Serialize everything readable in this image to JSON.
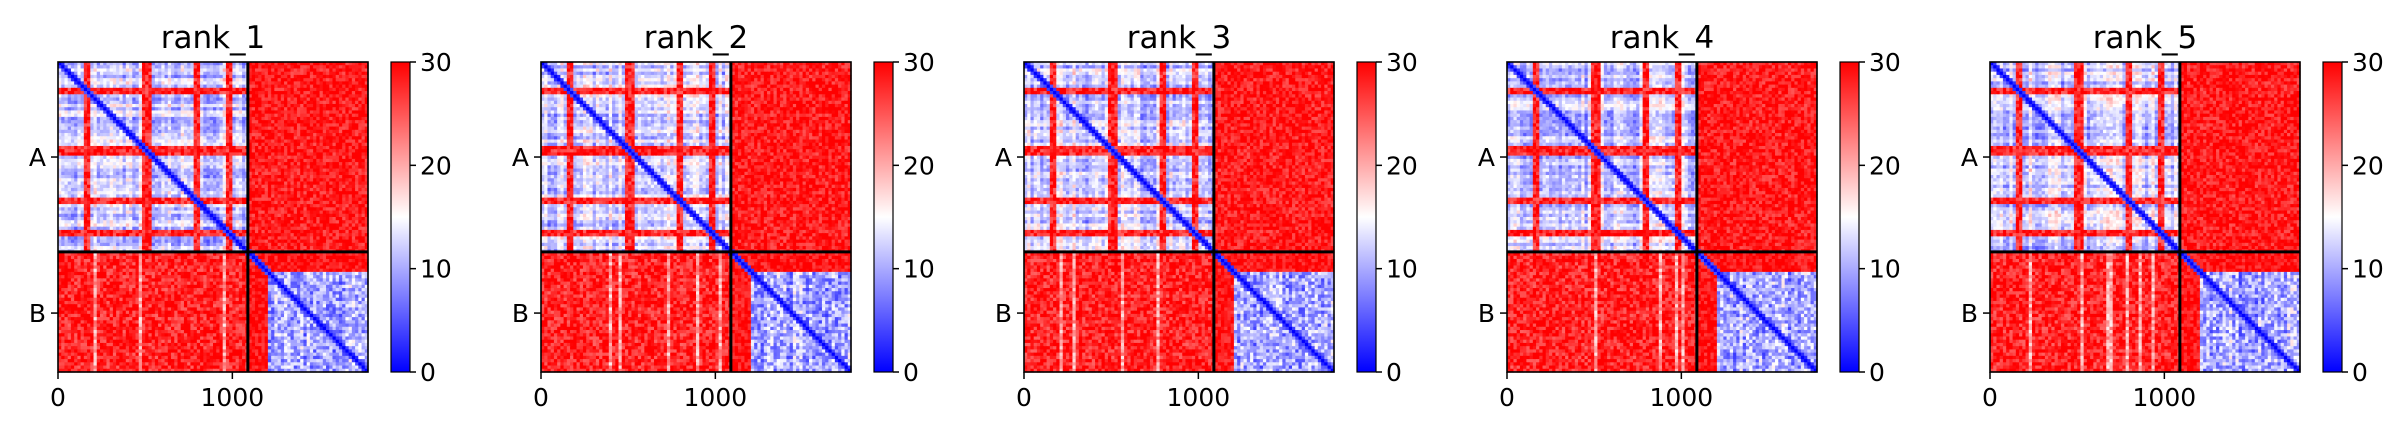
{
  "chart_data": [
    {
      "type": "heatmap",
      "title": "rank_1",
      "x_ticks": [
        {
          "value": 0,
          "label": "0"
        },
        {
          "value": 1000,
          "label": "1000"
        }
      ],
      "xlim": [
        0,
        1778
      ],
      "y_ticks": [
        {
          "value": 545,
          "label": "A"
        },
        {
          "value": 1440,
          "label": "B"
        }
      ],
      "segment_boundary": 1089,
      "colorbar": {
        "min": 0,
        "max": 30,
        "ticks": [
          0,
          10,
          20,
          30
        ],
        "colormap": "bwr"
      },
      "variant": 1
    },
    {
      "type": "heatmap",
      "title": "rank_2",
      "x_ticks": [
        {
          "value": 0,
          "label": "0"
        },
        {
          "value": 1000,
          "label": "1000"
        }
      ],
      "xlim": [
        0,
        1778
      ],
      "y_ticks": [
        {
          "value": 545,
          "label": "A"
        },
        {
          "value": 1440,
          "label": "B"
        }
      ],
      "segment_boundary": 1089,
      "colorbar": {
        "min": 0,
        "max": 30,
        "ticks": [
          0,
          10,
          20,
          30
        ],
        "colormap": "bwr"
      },
      "variant": 2
    },
    {
      "type": "heatmap",
      "title": "rank_3",
      "x_ticks": [
        {
          "value": 0,
          "label": "0"
        },
        {
          "value": 1000,
          "label": "1000"
        }
      ],
      "xlim": [
        0,
        1778
      ],
      "y_ticks": [
        {
          "value": 545,
          "label": "A"
        },
        {
          "value": 1440,
          "label": "B"
        }
      ],
      "segment_boundary": 1089,
      "colorbar": {
        "min": 0,
        "max": 30,
        "ticks": [
          0,
          10,
          20,
          30
        ],
        "colormap": "bwr"
      },
      "variant": 3
    },
    {
      "type": "heatmap",
      "title": "rank_4",
      "x_ticks": [
        {
          "value": 0,
          "label": "0"
        },
        {
          "value": 1000,
          "label": "1000"
        }
      ],
      "xlim": [
        0,
        1778
      ],
      "y_ticks": [
        {
          "value": 545,
          "label": "A"
        },
        {
          "value": 1440,
          "label": "B"
        }
      ],
      "segment_boundary": 1089,
      "colorbar": {
        "min": 0,
        "max": 30,
        "ticks": [
          0,
          10,
          20,
          30
        ],
        "colormap": "bwr"
      },
      "variant": 4
    },
    {
      "type": "heatmap",
      "title": "rank_5",
      "x_ticks": [
        {
          "value": 0,
          "label": "0"
        },
        {
          "value": 1000,
          "label": "1000"
        }
      ],
      "xlim": [
        0,
        1778
      ],
      "y_ticks": [
        {
          "value": 545,
          "label": "A"
        },
        {
          "value": 1440,
          "label": "B"
        }
      ],
      "segment_boundary": 1089,
      "colorbar": {
        "min": 0,
        "max": 30,
        "ticks": [
          0,
          10,
          20,
          30
        ],
        "colormap": "bwr"
      },
      "variant": 5
    }
  ],
  "colors": {
    "low": "#0000ff",
    "mid": "#ffffff",
    "high": "#ff0000",
    "axis": "#000000"
  }
}
